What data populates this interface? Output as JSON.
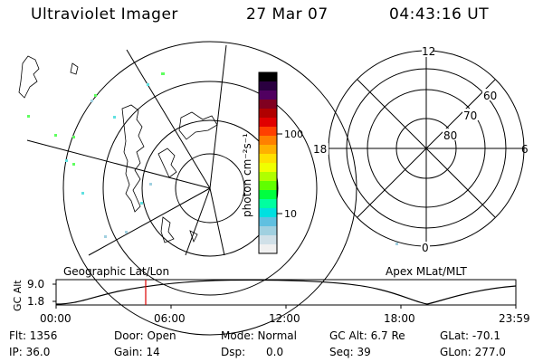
{
  "header": {
    "instrument": "Ultraviolet Imager",
    "date": "27 Mar 07",
    "time": "04:43:16 UT"
  },
  "geo_map": {
    "title": "Geographic Lat/Lon"
  },
  "color_bar": {
    "unit_label": "photon cm⁻²s⁻¹",
    "tick_labels": [
      "100",
      "10"
    ],
    "colors": [
      "#000000",
      "#2a0040",
      "#500060",
      "#800020",
      "#b00000",
      "#e00000",
      "#ff4000",
      "#ff8000",
      "#ffb000",
      "#ffe000",
      "#f0ff00",
      "#b0ff00",
      "#60ff00",
      "#00ff40",
      "#00ffa0",
      "#00e0e0",
      "#60c0e0",
      "#a0d0e0",
      "#d0e0e8",
      "#f0f0f0"
    ]
  },
  "polar_plot": {
    "title": "Apex MLat/MLT",
    "mlt_labels": {
      "top": "12",
      "left": "18",
      "right": "6",
      "bottom": "0"
    },
    "lat_labels": [
      "60",
      "70",
      "80"
    ]
  },
  "altitude_strip": {
    "y_label": "GC Alt",
    "y_ticks": [
      "9.0",
      "1.8"
    ],
    "x_ticks": [
      "00:00",
      "06:00",
      "12:00",
      "18:00",
      "23:59"
    ],
    "marker_color": "#dd0000"
  },
  "footer": {
    "row1": {
      "flt": "Flt: 1356",
      "door": "Door: Open",
      "mode": "Mode: Normal",
      "gcalt": "GC Alt: 6.7 Re",
      "glat": "GLat: -70.1"
    },
    "row2": {
      "ip": "IP: 36.0",
      "gain": "Gain: 14",
      "dsp": "Dsp:      0.0",
      "seq": "Seq: 39",
      "glon": "GLon: 277.0"
    }
  }
}
